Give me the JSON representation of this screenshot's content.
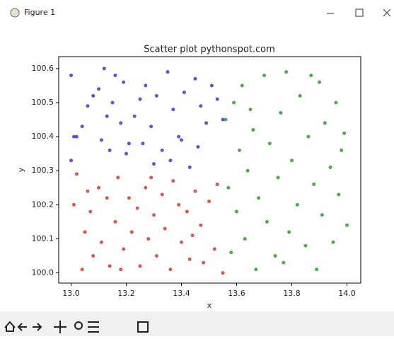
{
  "window": {
    "title": "Figure 1"
  },
  "chart_data": {
    "type": "scatter",
    "title": "Scatter plot pythonspot.com",
    "xlabel": "x",
    "ylabel": "y",
    "xlim": [
      12.955,
      14.05
    ],
    "ylim": [
      99.97,
      100.635
    ],
    "xticks": [
      {
        "value": 13,
        "label": "13.0"
      },
      13.2,
      13.4,
      13.6,
      13.8,
      {
        "value": 14,
        "label": "14.0"
      }
    ],
    "yticks": [
      {
        "value": 100,
        "label": "100.0"
      },
      100.1,
      100.2,
      100.3,
      100.4,
      100.5,
      100.6
    ],
    "series": [
      {
        "color": "#3a3ac4",
        "x": [
          13.0,
          13.01,
          13.02,
          13.06,
          13.08,
          13.1,
          13.12,
          13.13,
          13.15,
          13.16,
          13.18,
          13.19,
          13.21,
          13.23,
          13.25,
          13.27,
          13.29,
          13.31,
          13.33,
          13.35,
          13.37,
          13.39,
          13.41,
          13.43,
          13.45,
          13.47,
          13.49,
          13.51,
          13.53,
          13.55,
          13.0,
          13.04,
          13.11,
          13.2,
          13.3,
          13.36,
          13.4,
          13.14,
          13.26,
          13.46
        ],
        "values": [
          100.58,
          100.4,
          100.4,
          100.49,
          100.52,
          100.54,
          100.6,
          100.46,
          100.5,
          100.58,
          100.44,
          100.56,
          100.38,
          100.46,
          100.51,
          100.55,
          100.43,
          100.52,
          100.36,
          100.59,
          100.48,
          100.4,
          100.53,
          100.31,
          100.57,
          100.49,
          100.44,
          100.55,
          100.51,
          100.45,
          100.33,
          100.43,
          100.39,
          100.35,
          100.32,
          100.33,
          100.39,
          100.36,
          100.38,
          100.37
        ]
      },
      {
        "color": "#d03a3a",
        "x": [
          13.01,
          13.02,
          13.04,
          13.05,
          13.07,
          13.08,
          13.1,
          13.11,
          13.13,
          13.14,
          13.16,
          13.17,
          13.19,
          13.21,
          13.22,
          13.24,
          13.25,
          13.27,
          13.28,
          13.3,
          13.31,
          13.33,
          13.34,
          13.36,
          13.37,
          13.39,
          13.4,
          13.42,
          13.43,
          13.45,
          13.47,
          13.48,
          13.5,
          13.52,
          13.53,
          13.55,
          13.06,
          13.18,
          13.29,
          13.44
        ],
        "values": [
          100.2,
          100.29,
          100.01,
          100.12,
          100.18,
          100.05,
          100.25,
          100.09,
          100.22,
          100.02,
          100.15,
          100.28,
          100.07,
          100.22,
          100.12,
          100.19,
          100.02,
          100.25,
          100.1,
          100.17,
          100.05,
          100.23,
          100.13,
          100.01,
          100.27,
          100.2,
          100.09,
          100.18,
          100.04,
          100.24,
          100.14,
          100.03,
          100.21,
          100.07,
          100.26,
          100.0,
          100.24,
          100.01,
          100.28,
          100.11
        ]
      },
      {
        "color": "#2e9a2e",
        "x": [
          13.56,
          13.57,
          13.58,
          13.59,
          13.6,
          13.61,
          13.62,
          13.63,
          13.64,
          13.66,
          13.67,
          13.68,
          13.7,
          13.71,
          13.72,
          13.74,
          13.75,
          13.76,
          13.78,
          13.79,
          13.8,
          13.82,
          13.83,
          13.85,
          13.86,
          13.88,
          13.89,
          13.9,
          13.91,
          13.92,
          13.94,
          13.95,
          13.96,
          13.97,
          13.98,
          14.0,
          13.65,
          13.77,
          13.87,
          13.99
        ],
        "values": [
          100.45,
          100.25,
          100.06,
          100.5,
          100.18,
          100.36,
          100.55,
          100.1,
          100.3,
          100.42,
          100.01,
          100.22,
          100.58,
          100.15,
          100.38,
          100.05,
          100.28,
          100.47,
          100.59,
          100.12,
          100.33,
          100.2,
          100.52,
          100.08,
          100.4,
          100.26,
          100.01,
          100.56,
          100.17,
          100.44,
          100.31,
          100.09,
          100.5,
          100.23,
          100.36,
          100.14,
          100.48,
          100.03,
          100.58,
          100.41
        ]
      }
    ]
  }
}
